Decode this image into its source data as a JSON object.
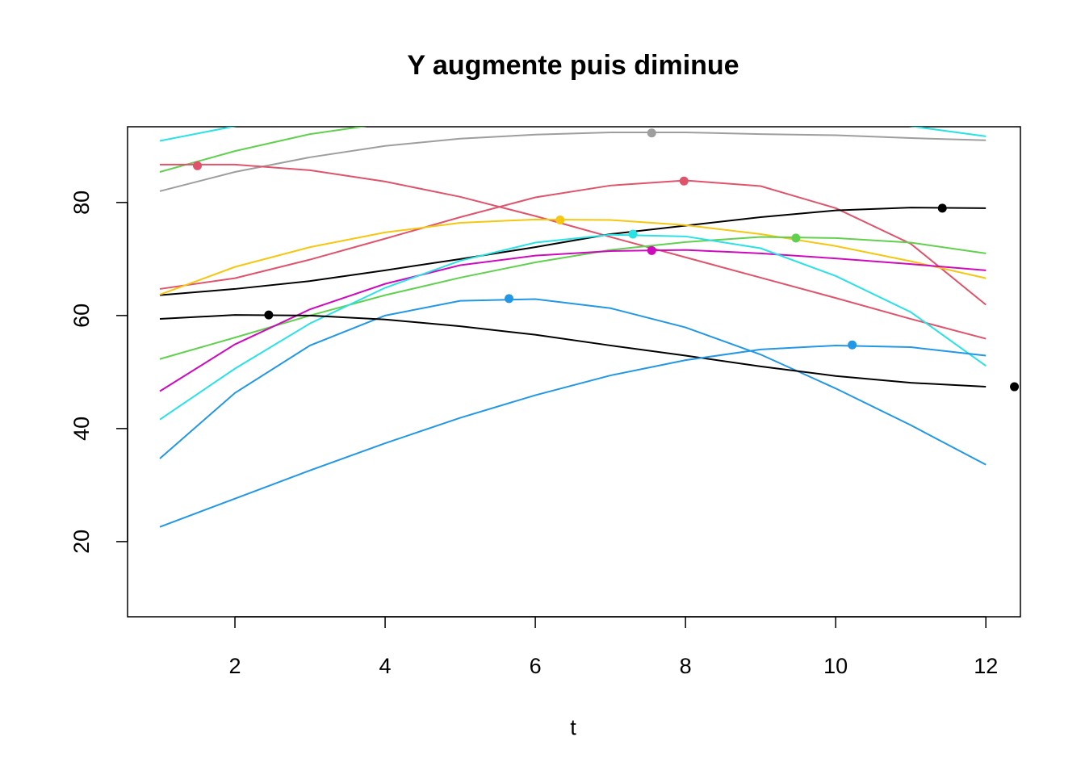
{
  "chart_data": {
    "type": "line",
    "title": "Y augmente puis diminue",
    "x_label": "t",
    "x": [
      1,
      2,
      3,
      4,
      5,
      6,
      7,
      8,
      9,
      10,
      11,
      12
    ],
    "series": [
      {
        "color": "#28E2E5",
        "values": [
          90.9,
          93.5,
          95,
          96,
          97,
          97.5,
          97.5,
          97,
          96.5,
          95,
          93.5,
          91.7
        ]
      },
      {
        "color": "#61D04F",
        "values": [
          85.4,
          89.1,
          92.1,
          94,
          95.5,
          96.5,
          97,
          97.5,
          97.5,
          97,
          96,
          95
        ]
      },
      {
        "color": "#9E9E9E",
        "values": [
          82,
          85.4,
          88,
          90,
          91.3,
          92,
          92.4,
          92.4,
          92.1,
          91.9,
          91.4,
          91
        ]
      },
      {
        "color": "#DF536B",
        "values": [
          86.7,
          86.7,
          85.7,
          83.7,
          81,
          77.6,
          73.9,
          70.3,
          66.7,
          63.1,
          59.4,
          55.9
        ]
      },
      {
        "color": "#DF536B",
        "values": [
          64.7,
          66.6,
          69.9,
          73.6,
          77.4,
          80.9,
          83,
          83.9,
          82.9,
          79,
          72.7,
          61.9
        ]
      },
      {
        "color": "#000000",
        "values": [
          63.6,
          64.7,
          66.1,
          68,
          70,
          72.1,
          74.4,
          75.9,
          77.4,
          78.6,
          79.1,
          79
        ]
      },
      {
        "color": "#F5C710",
        "values": [
          63.7,
          68.6,
          72.1,
          74.7,
          76.4,
          77,
          76.9,
          76,
          74.4,
          72.3,
          69.6,
          66.6
        ]
      },
      {
        "color": "#61D04F",
        "values": [
          52.3,
          56.1,
          60,
          63.6,
          66.7,
          69.4,
          71.6,
          73,
          73.9,
          73.7,
          72.9,
          71
        ]
      },
      {
        "color": "#CD0BBC",
        "values": [
          46.6,
          54.9,
          61.1,
          65.6,
          68.9,
          70.6,
          71.4,
          71.6,
          71,
          70.1,
          69.1,
          68
        ]
      },
      {
        "color": "#28E2E5",
        "values": [
          41.6,
          50.6,
          58.6,
          64.9,
          69.7,
          72.9,
          74.3,
          74,
          71.9,
          67,
          60.6,
          51.1
        ]
      },
      {
        "color": "#2297E6",
        "values": [
          34.7,
          46.3,
          54.7,
          60,
          62.6,
          62.9,
          61.3,
          57.9,
          53.1,
          47.1,
          40.6,
          33.6
        ]
      },
      {
        "color": "#000000",
        "values": [
          59.4,
          60.1,
          60,
          59.3,
          58.1,
          56.6,
          54.7,
          52.9,
          51,
          49.3,
          48.1,
          47.4
        ]
      },
      {
        "color": "#2297E6",
        "values": [
          22.6,
          27.6,
          32.6,
          37.4,
          41.9,
          45.9,
          49.4,
          52.1,
          54,
          54.7,
          54.4,
          52.9
        ]
      }
    ],
    "points": {
      "x": [
        1.5,
        2.45,
        5.65,
        6.33,
        7.3,
        7.55,
        7.55,
        7.98,
        9.47,
        10.22,
        11.42,
        12.38
      ],
      "y": [
        86.5,
        60.1,
        63,
        76.9,
        74.4,
        71.5,
        92.3,
        83.8,
        73.7,
        54.8,
        79,
        47.4
      ],
      "colors": [
        "#DF536B",
        "#000000",
        "#2297E6",
        "#F5C710",
        "#28E2E5",
        "#CD0BBC",
        "#9E9E9E",
        "#DF536B",
        "#61D04F",
        "#2297E6",
        "#000000",
        "#000000"
      ]
    },
    "xlim": [
      0.57,
      12.46
    ],
    "ylim": [
      6.7,
      93.4
    ],
    "xticks": [
      2,
      4,
      6,
      8,
      10,
      12
    ],
    "yticks": [
      20,
      40,
      60,
      80
    ]
  }
}
